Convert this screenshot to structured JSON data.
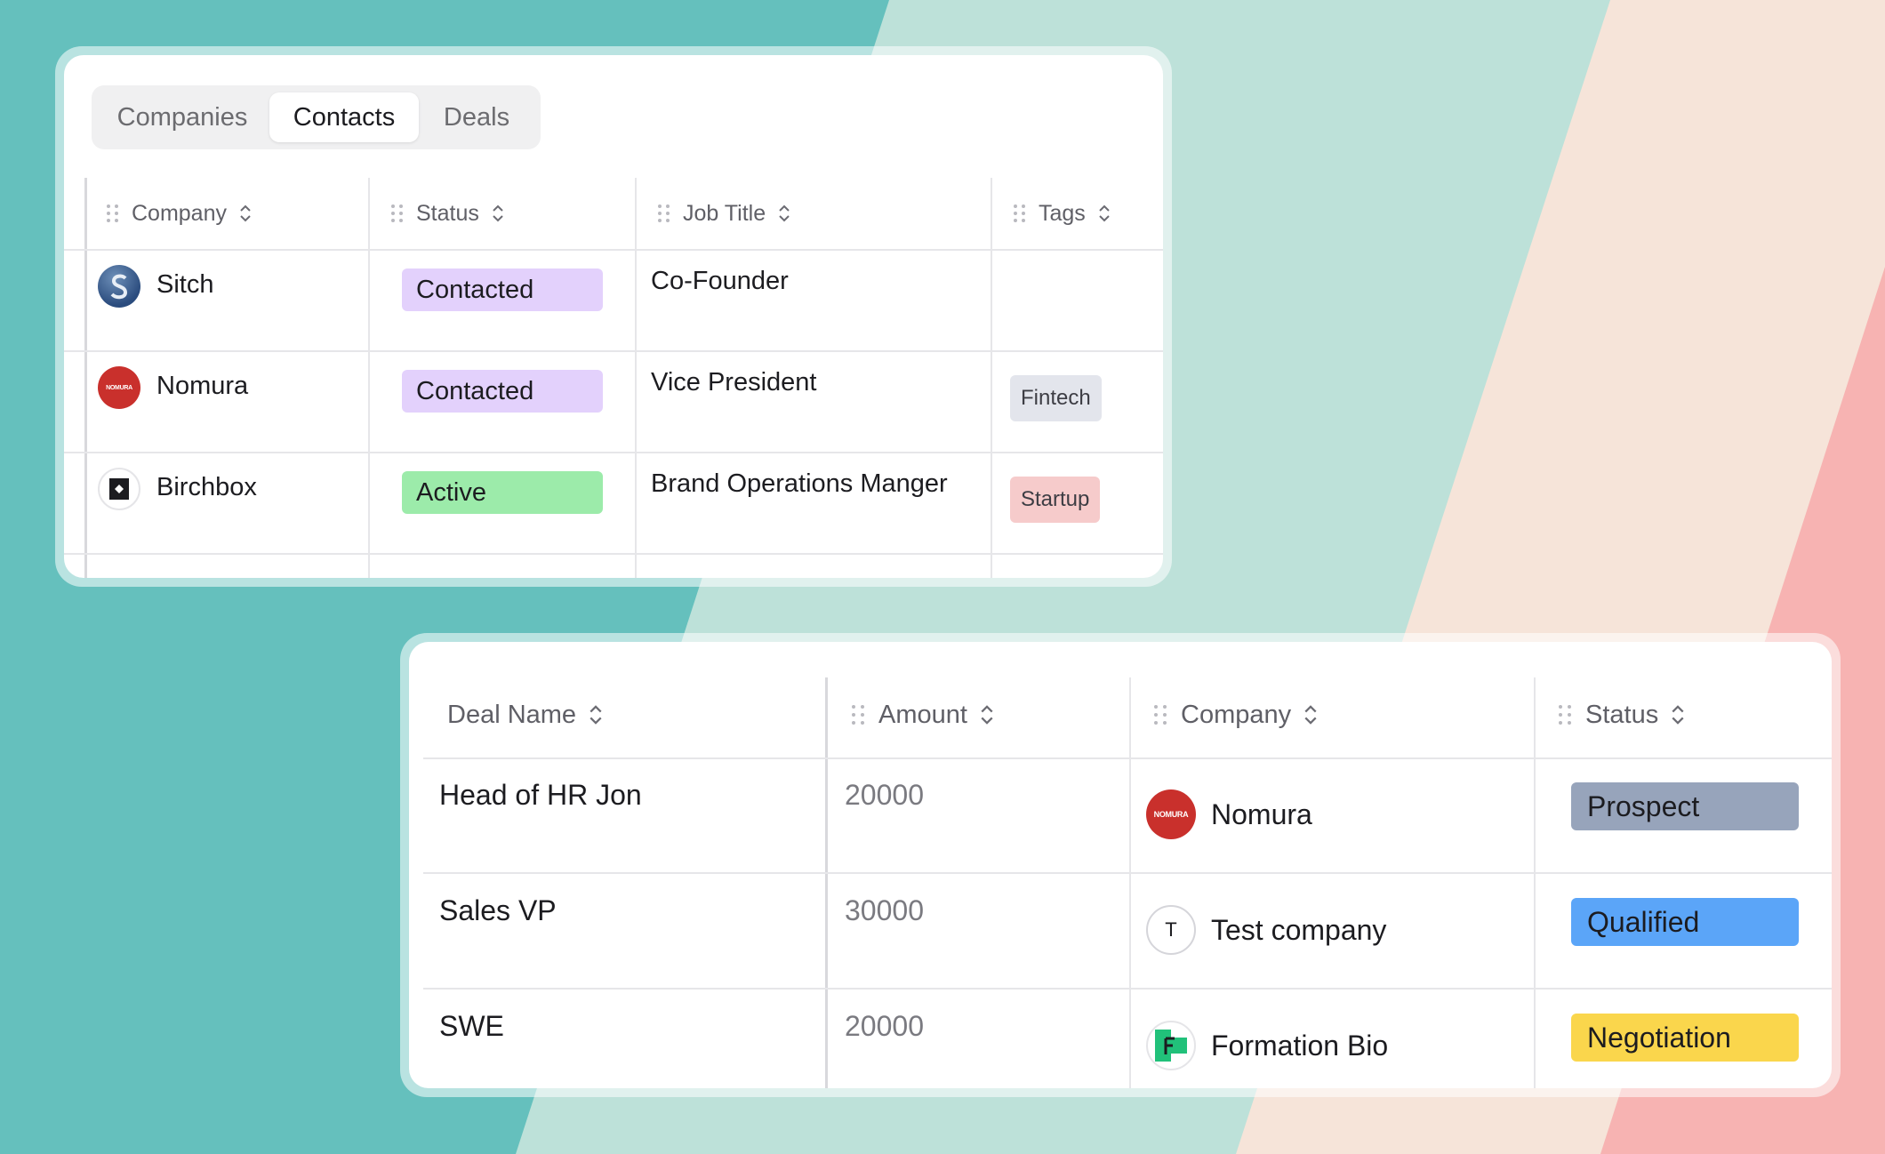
{
  "contacts_panel": {
    "tabs": [
      {
        "label": "Companies",
        "active": false
      },
      {
        "label": "Contacts",
        "active": true
      },
      {
        "label": "Deals",
        "active": false
      }
    ],
    "columns": [
      "Company",
      "Status",
      "Job Title",
      "Tags"
    ],
    "rows": [
      {
        "company": "Sitch",
        "status": "Contacted",
        "job_title": "Co-Founder",
        "tag": ""
      },
      {
        "company": "Nomura",
        "status": "Contacted",
        "job_title": "Vice President",
        "tag": "Fintech"
      },
      {
        "company": "Birchbox",
        "status": "Active",
        "job_title": "Brand Operations Manger",
        "tag": "Startup"
      }
    ],
    "logo_texts": {
      "nomura": "NOMURA"
    }
  },
  "deals_panel": {
    "columns": [
      "Deal Name",
      "Amount",
      "Company",
      "Status"
    ],
    "rows": [
      {
        "deal_name": "Head of HR Jon",
        "amount": "20000",
        "company": "Nomura",
        "status": "Prospect"
      },
      {
        "deal_name": "Sales VP",
        "amount": "30000",
        "company": "Test company",
        "status": "Qualified"
      },
      {
        "deal_name": "SWE",
        "amount": "20000",
        "company": "Formation Bio",
        "status": "Negotiation"
      }
    ],
    "logo_texts": {
      "nomura": "NOMURA",
      "test_company": "T"
    }
  },
  "colors": {
    "bg_teal": "#65c0bd",
    "bg_mint": "#bde1d9",
    "bg_peach": "#f6e4d9",
    "bg_pink": "#f7b3b2",
    "status_contacted": "#e3d1fc",
    "status_active": "#9cebaa",
    "tag_fintech": "#e3e5ec",
    "tag_startup": "#f6cbcb",
    "deal_prospect": "#97a4bb",
    "deal_qualified": "#5ba5f8",
    "deal_negotiation": "#fad64c"
  },
  "icons": [
    "drag-handle-icon",
    "sort-updown-icon"
  ]
}
